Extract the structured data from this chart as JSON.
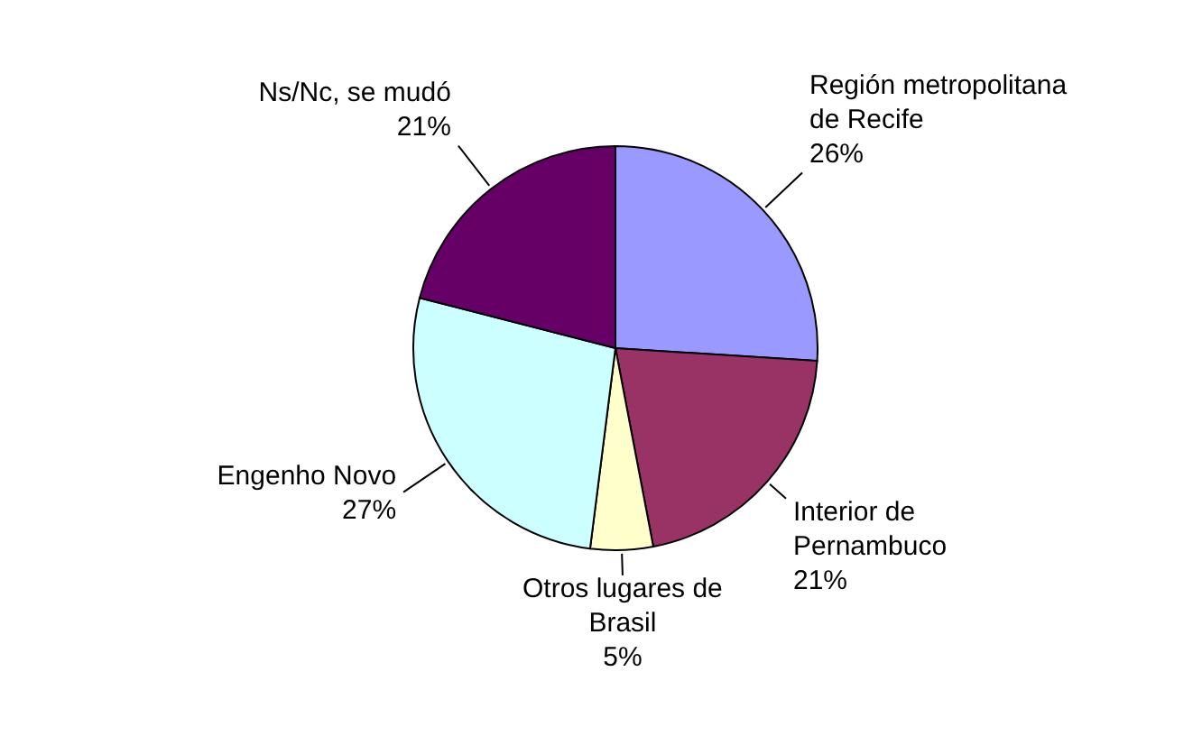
{
  "chart_data": {
    "type": "pie",
    "categories": [
      "Región metropolitana de Recife",
      "Interior de Pernambuco",
      "Otros lugares de Brasil",
      "Engenho Novo",
      "Ns/Nc, se mudó"
    ],
    "values": [
      26,
      21,
      5,
      27,
      21
    ],
    "value_labels": [
      "26%",
      "21%",
      "5%",
      "27%",
      "21%"
    ],
    "colors": [
      "#9999ff",
      "#993366",
      "#ffffcc",
      "#ccffff",
      "#660066"
    ],
    "legend": false
  }
}
